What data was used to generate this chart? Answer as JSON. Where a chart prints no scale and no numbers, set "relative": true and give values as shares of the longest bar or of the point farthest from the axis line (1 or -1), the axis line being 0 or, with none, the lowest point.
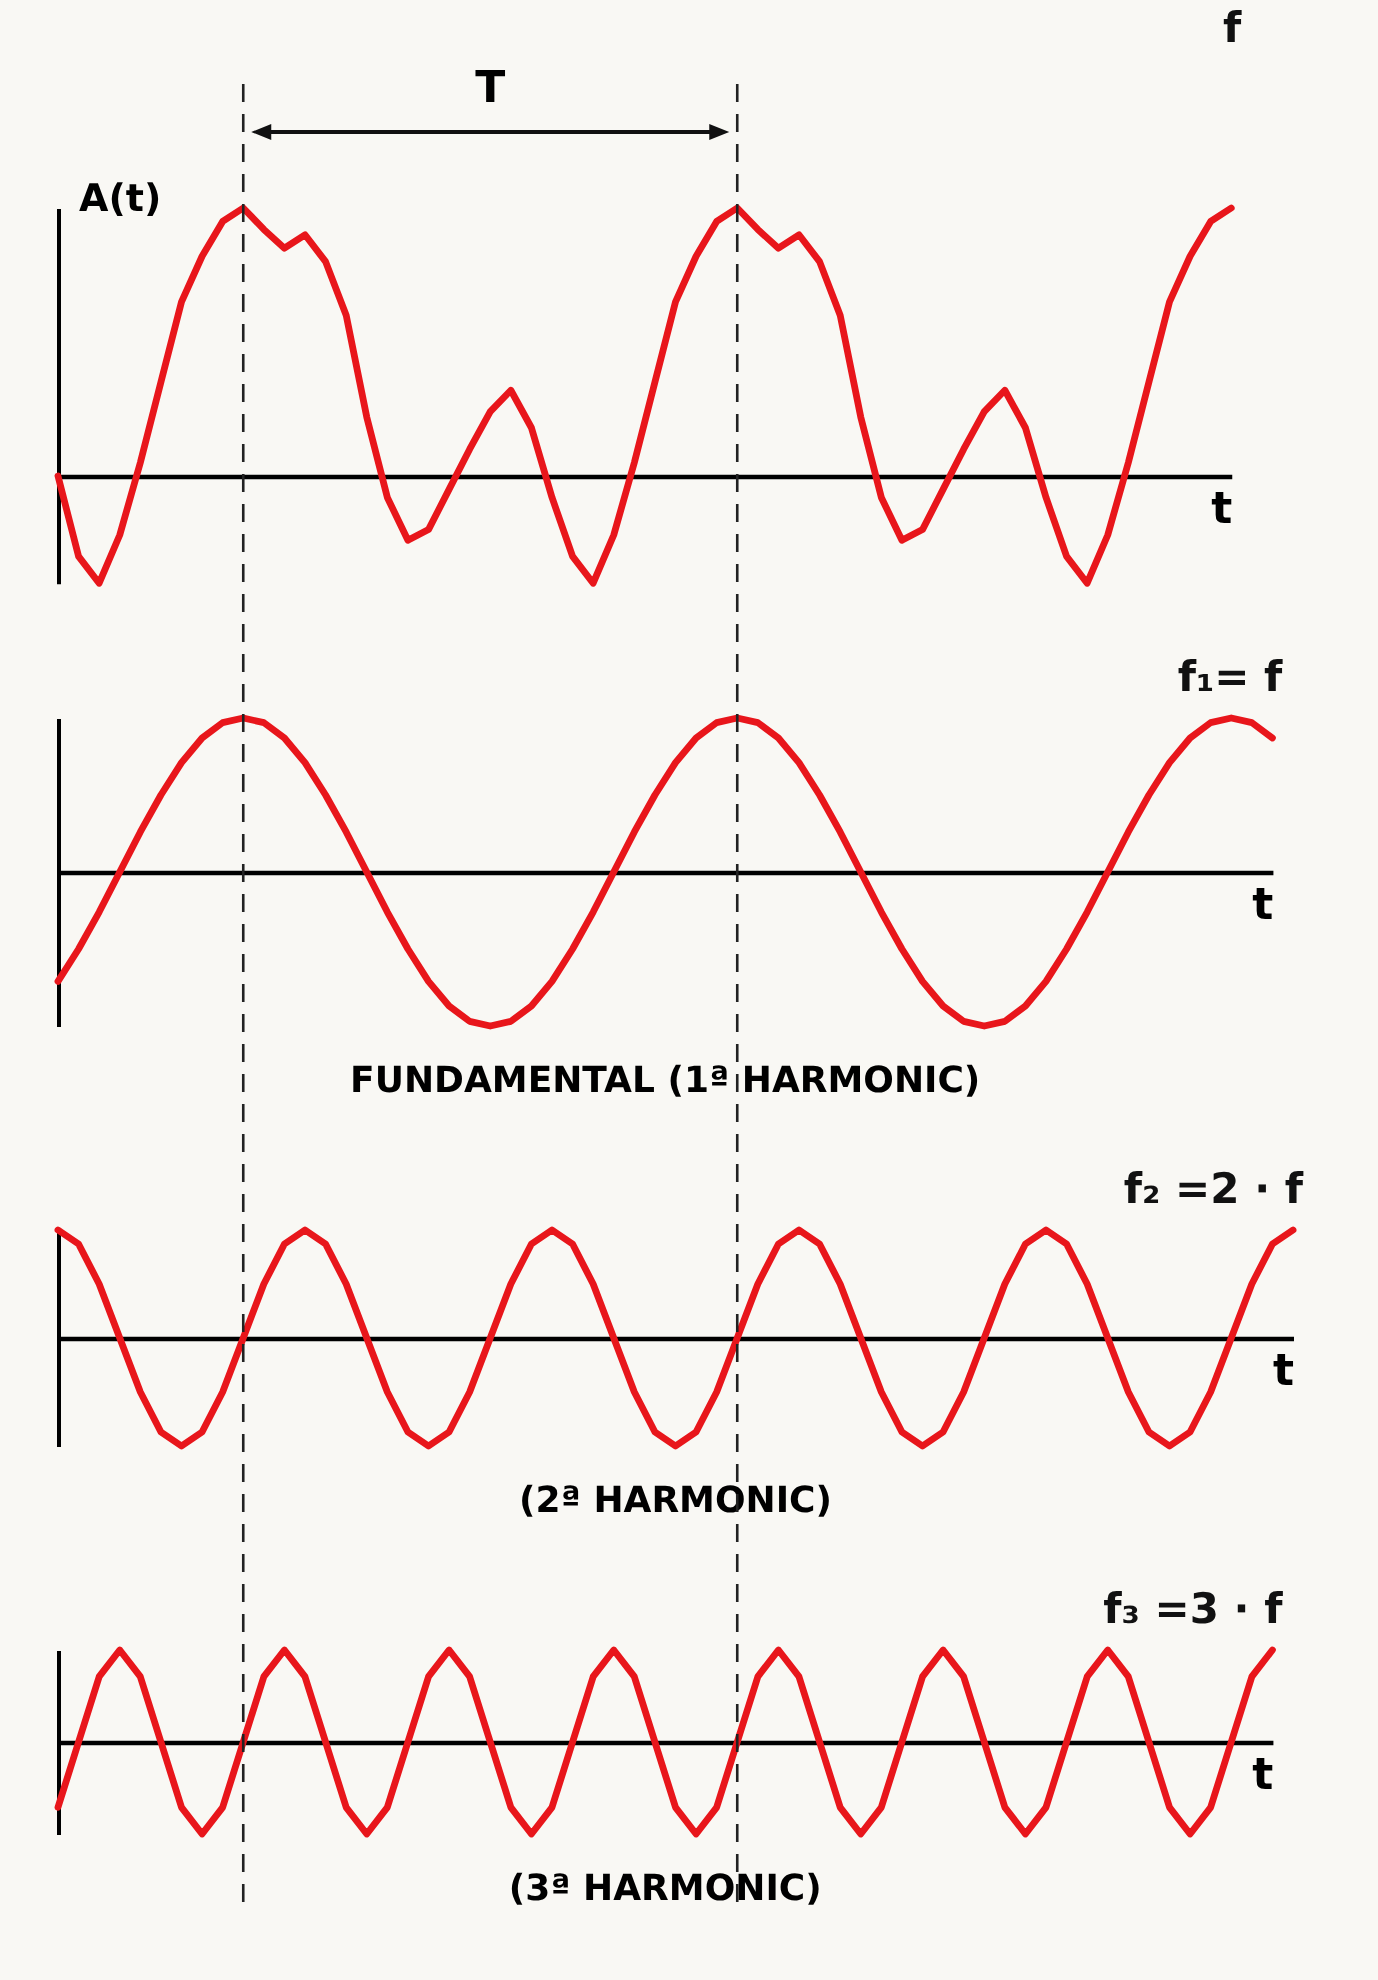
{
  "chart_data": [
    {
      "type": "line",
      "title": "f",
      "ylabel": "A(t)",
      "xlabel": "t",
      "relative": true,
      "annotations": [
        "T"
      ],
      "categories": [
        null,
        null,
        null,
        null,
        null,
        null,
        null,
        null,
        null,
        null,
        null,
        null,
        null,
        null,
        null,
        null,
        null,
        null,
        null,
        null,
        null,
        null,
        null,
        null,
        null,
        null,
        null,
        null,
        null,
        null,
        null,
        null,
        null,
        null,
        null,
        null,
        null,
        null,
        null,
        null,
        null,
        null,
        null,
        null,
        null,
        null,
        null,
        null,
        null,
        null,
        null,
        null,
        null,
        null,
        null,
        null,
        null,
        null
      ],
      "series": [
        {
          "color": "#e8161b",
          "values": [
            0,
            -0.3,
            -0.4,
            -0.22,
            0.05,
            0.35,
            0.65,
            0.82,
            0.95,
            1,
            0.92,
            0.85,
            0.9,
            0.8,
            0.6,
            0.22,
            -0.08,
            -0.24,
            -0.2,
            -0.05,
            0.1,
            0.24,
            0.32,
            0.18,
            -0.08,
            -0.3,
            -0.4,
            -0.22,
            0.05,
            0.35,
            0.65,
            0.82,
            0.95,
            1,
            0.92,
            0.85,
            0.9,
            0.8,
            0.6,
            0.22,
            -0.08,
            -0.24,
            -0.2,
            -0.05,
            0.1,
            0.24,
            0.32,
            0.18,
            -0.08,
            -0.3,
            -0.4,
            -0.22,
            0.05,
            0.35,
            0.65,
            0.82,
            0.95,
            1
          ]
        }
      ]
    },
    {
      "type": "line",
      "title": "f₁= f",
      "xlabel": "t",
      "relative": true,
      "annotations": [
        "FUNDAMENTAL (1ª HARMONIC)"
      ],
      "categories": [
        null,
        null,
        null,
        null,
        null,
        null,
        null,
        null,
        null,
        null,
        null,
        null,
        null,
        null,
        null,
        null,
        null,
        null,
        null,
        null,
        null,
        null,
        null,
        null,
        null,
        null,
        null,
        null,
        null,
        null,
        null,
        null,
        null,
        null,
        null,
        null,
        null,
        null,
        null,
        null,
        null,
        null,
        null,
        null,
        null,
        null,
        null,
        null,
        null,
        null,
        null,
        null,
        null,
        null,
        null,
        null,
        null,
        null,
        null,
        null
      ],
      "series": [
        {
          "color": "#e8161b",
          "values": [
            -0.71,
            -0.5,
            -0.26,
            0,
            0.26,
            0.5,
            0.71,
            0.87,
            0.97,
            1,
            0.97,
            0.87,
            0.71,
            0.5,
            0.26,
            0,
            -0.26,
            -0.5,
            -0.71,
            -0.87,
            -0.97,
            -1,
            -0.97,
            -0.87,
            -0.71,
            -0.5,
            -0.26,
            0,
            0.26,
            0.5,
            0.71,
            0.87,
            0.97,
            1,
            0.97,
            0.87,
            0.71,
            0.5,
            0.26,
            0,
            -0.26,
            -0.5,
            -0.71,
            -0.87,
            -0.97,
            -1,
            -0.97,
            -0.87,
            -0.71,
            -0.5,
            -0.26,
            0,
            0.26,
            0.5,
            0.71,
            0.87,
            0.97,
            1,
            0.97,
            0.87
          ]
        }
      ]
    },
    {
      "type": "line",
      "title": "f₂ =2 · f",
      "xlabel": "t",
      "relative": true,
      "annotations": [
        "(2ª HARMONIC)"
      ],
      "categories": [
        null,
        null,
        null,
        null,
        null,
        null,
        null,
        null,
        null,
        null,
        null,
        null,
        null,
        null,
        null,
        null,
        null,
        null,
        null,
        null,
        null,
        null,
        null,
        null,
        null,
        null,
        null,
        null,
        null,
        null,
        null,
        null,
        null,
        null,
        null,
        null,
        null,
        null,
        null,
        null,
        null,
        null,
        null,
        null,
        null,
        null,
        null,
        null,
        null,
        null,
        null,
        null,
        null,
        null,
        null,
        null,
        null,
        null,
        null,
        null,
        null
      ],
      "series": [
        {
          "color": "#e8161b",
          "values": [
            1,
            0.87,
            0.5,
            0,
            -0.5,
            -0.87,
            -1,
            -0.87,
            -0.5,
            0,
            0.5,
            0.87,
            1,
            0.87,
            0.5,
            0,
            -0.5,
            -0.87,
            -1,
            -0.87,
            -0.5,
            0,
            0.5,
            0.87,
            1,
            0.87,
            0.5,
            0,
            -0.5,
            -0.87,
            -1,
            -0.87,
            -0.5,
            0,
            0.5,
            0.87,
            1,
            0.87,
            0.5,
            0,
            -0.5,
            -0.87,
            -1,
            -0.87,
            -0.5,
            0,
            0.5,
            0.87,
            1,
            0.87,
            0.5,
            0,
            -0.5,
            -0.87,
            -1,
            -0.87,
            -0.5,
            0,
            0.5,
            0.87,
            1
          ]
        }
      ]
    },
    {
      "type": "line",
      "title": "f₃ =3 · f",
      "xlabel": "t",
      "relative": true,
      "annotations": [
        "(3ª HARMONIC)"
      ],
      "categories": [
        null,
        null,
        null,
        null,
        null,
        null,
        null,
        null,
        null,
        null,
        null,
        null,
        null,
        null,
        null,
        null,
        null,
        null,
        null,
        null,
        null,
        null,
        null,
        null,
        null,
        null,
        null,
        null,
        null,
        null,
        null,
        null,
        null,
        null,
        null,
        null,
        null,
        null,
        null,
        null,
        null,
        null,
        null,
        null,
        null,
        null,
        null,
        null,
        null,
        null,
        null,
        null,
        null,
        null,
        null,
        null,
        null,
        null,
        null,
        null
      ],
      "series": [
        {
          "color": "#e8161b",
          "values": [
            -0.71,
            0,
            0.71,
            1,
            0.71,
            0,
            -0.71,
            -1,
            -0.71,
            0,
            0.71,
            1,
            0.71,
            0,
            -0.71,
            -1,
            -0.71,
            0,
            0.71,
            1,
            0.71,
            0,
            -0.71,
            -1,
            -0.71,
            0,
            0.71,
            1,
            0.71,
            0,
            -0.71,
            -1,
            -0.71,
            0,
            0.71,
            1,
            0.71,
            0,
            -0.71,
            -1,
            -0.71,
            0,
            0.71,
            1,
            0.71,
            0,
            -0.71,
            -1,
            -0.71,
            0,
            0.71,
            1,
            0.71,
            0,
            -0.71,
            -1,
            -0.71,
            0,
            0.71,
            1
          ]
        }
      ]
    }
  ]
}
